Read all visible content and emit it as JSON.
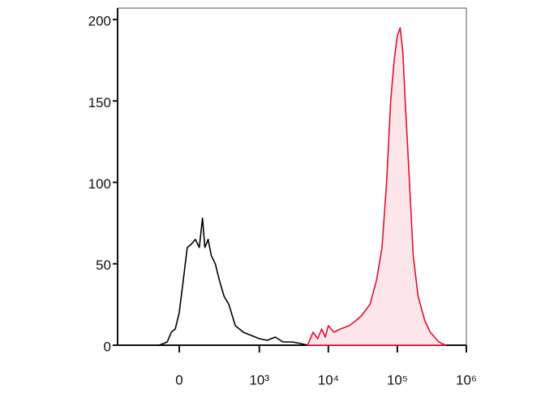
{
  "chart_data": {
    "type": "line",
    "xscale": "biexponential",
    "xlim": [
      -770,
      1000000
    ],
    "xticks": [
      0,
      {
        "value": 1000,
        "label": "10³"
      },
      {
        "value": 10000,
        "label": "10⁴"
      },
      {
        "value": 100000,
        "label": "10⁵"
      },
      {
        "value": 1000000,
        "label": "10⁶"
      }
    ],
    "ylim": [
      0,
      207
    ],
    "yticks": [
      0,
      50,
      100,
      150,
      200
    ],
    "series": [
      {
        "color": "#000000",
        "x": [
          -250,
          -150,
          -100,
          -50,
          0,
          50,
          100,
          150,
          200,
          250,
          290,
          320,
          360,
          400,
          450,
          500,
          560,
          620,
          700,
          800,
          900,
          1000,
          1300,
          1700,
          2200,
          3000,
          4000,
          5000
        ],
        "values": [
          0,
          2,
          8,
          10,
          20,
          40,
          60,
          62,
          65,
          60,
          78,
          60,
          65,
          55,
          50,
          40,
          30,
          25,
          12,
          8,
          6,
          4,
          3,
          5,
          2,
          2,
          1,
          0
        ]
      },
      {
        "color": "#e0102e",
        "fill": "#fde6e9",
        "x": [
          5000,
          6000,
          7000,
          8000,
          9000,
          10000,
          12000,
          15000,
          20000,
          25000,
          30000,
          40000,
          50000,
          60000,
          70000,
          80000,
          90000,
          100000,
          110000,
          120000,
          130000,
          150000,
          170000,
          200000,
          250000,
          300000,
          400000,
          500000
        ],
        "values": [
          0,
          8,
          4,
          10,
          5,
          12,
          8,
          10,
          12,
          15,
          18,
          25,
          40,
          60,
          100,
          150,
          175,
          190,
          195,
          180,
          150,
          100,
          55,
          30,
          15,
          8,
          2,
          0
        ]
      }
    ]
  }
}
